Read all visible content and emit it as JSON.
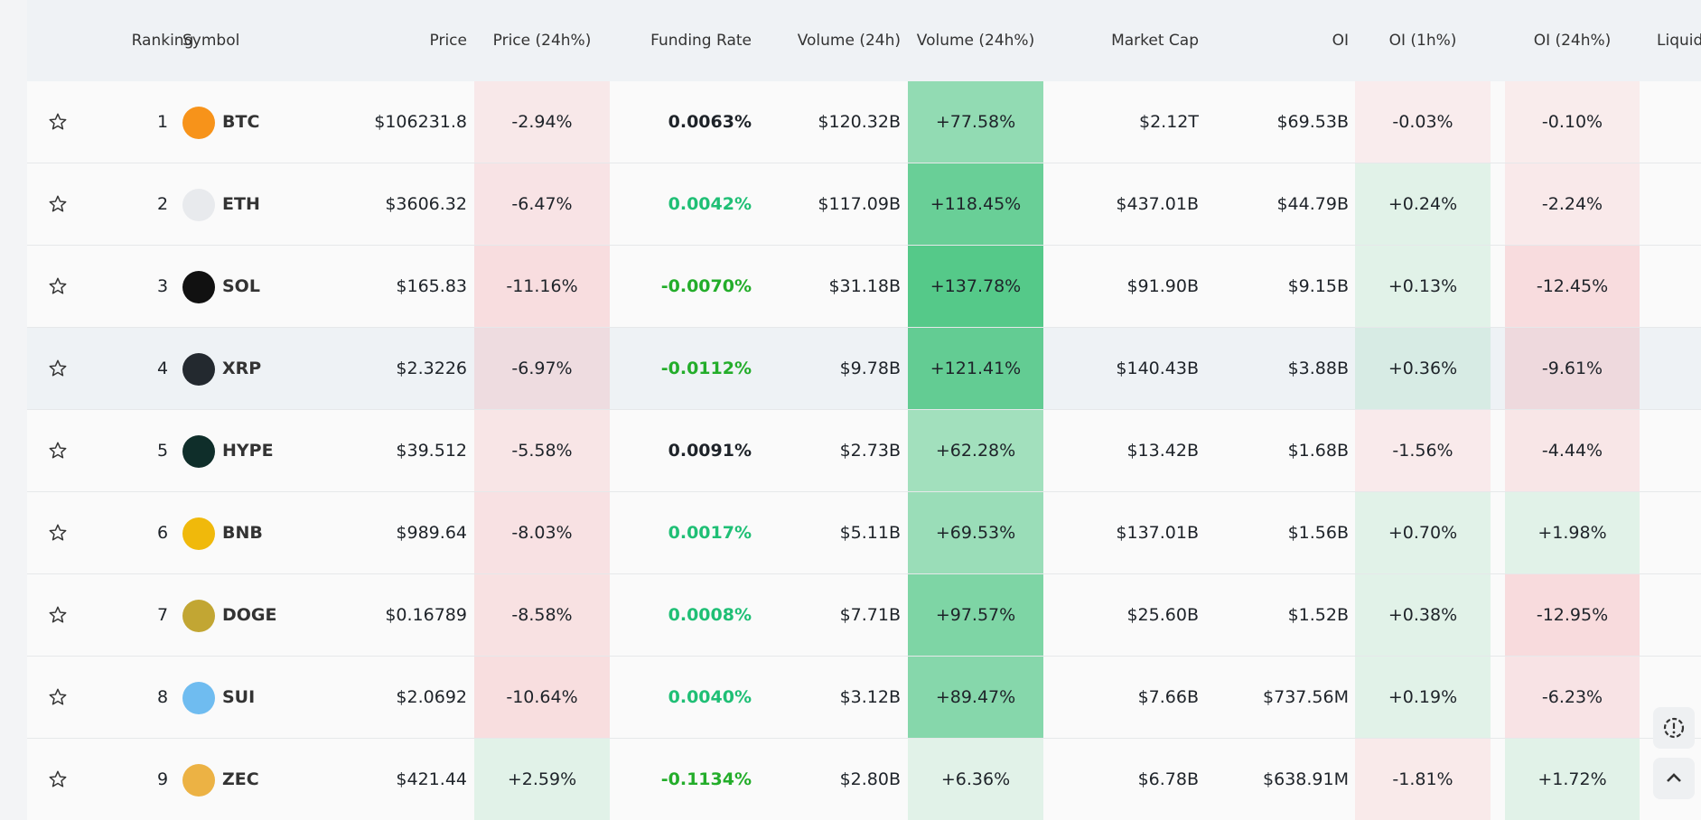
{
  "table": {
    "columns": [
      "Ranking",
      "Symbol",
      "Price",
      "Price (24h%)",
      "Funding Rate",
      "Volume (24h)",
      "Volume (24h%)",
      "Market Cap",
      "OI",
      "OI (1h%)",
      "OI (24h%)",
      "Liquid"
    ],
    "rows": [
      {
        "rank": "1",
        "symbol": "BTC",
        "icon_color": "#f7931a",
        "price": "$106231.8",
        "price_24h": "-2.94%",
        "funding": "0.0063%",
        "volume": "$120.32B",
        "volume_24h": "+77.58%",
        "market_cap": "$2.12T",
        "oi": "$69.53B",
        "oi_1h": "-0.03%",
        "oi_24h": "-0.10%"
      },
      {
        "rank": "2",
        "symbol": "ETH",
        "icon_color": "#e8eaed",
        "price": "$3606.32",
        "price_24h": "-6.47%",
        "funding": "0.0042%",
        "volume": "$117.09B",
        "volume_24h": "+118.45%",
        "market_cap": "$437.01B",
        "oi": "$44.79B",
        "oi_1h": "+0.24%",
        "oi_24h": "-2.24%"
      },
      {
        "rank": "3",
        "symbol": "SOL",
        "icon_color": "#111111",
        "price": "$165.83",
        "price_24h": "-11.16%",
        "funding": "-0.0070%",
        "volume": "$31.18B",
        "volume_24h": "+137.78%",
        "market_cap": "$91.90B",
        "oi": "$9.15B",
        "oi_1h": "+0.13%",
        "oi_24h": "-12.45%"
      },
      {
        "rank": "4",
        "symbol": "XRP",
        "icon_color": "#23292f",
        "price": "$2.3226",
        "price_24h": "-6.97%",
        "funding": "-0.0112%",
        "volume": "$9.78B",
        "volume_24h": "+121.41%",
        "market_cap": "$140.43B",
        "oi": "$3.88B",
        "oi_1h": "+0.36%",
        "oi_24h": "-9.61%"
      },
      {
        "rank": "5",
        "symbol": "HYPE",
        "icon_color": "#0f2e2a",
        "price": "$39.512",
        "price_24h": "-5.58%",
        "funding": "0.0091%",
        "volume": "$2.73B",
        "volume_24h": "+62.28%",
        "market_cap": "$13.42B",
        "oi": "$1.68B",
        "oi_1h": "-1.56%",
        "oi_24h": "-4.44%"
      },
      {
        "rank": "6",
        "symbol": "BNB",
        "icon_color": "#f0b90b",
        "price": "$989.64",
        "price_24h": "-8.03%",
        "funding": "0.0017%",
        "volume": "$5.11B",
        "volume_24h": "+69.53%",
        "market_cap": "$137.01B",
        "oi": "$1.56B",
        "oi_1h": "+0.70%",
        "oi_24h": "+1.98%"
      },
      {
        "rank": "7",
        "symbol": "DOGE",
        "icon_color": "#c2a633",
        "price": "$0.16789",
        "price_24h": "-8.58%",
        "funding": "0.0008%",
        "volume": "$7.71B",
        "volume_24h": "+97.57%",
        "market_cap": "$25.60B",
        "oi": "$1.52B",
        "oi_1h": "+0.38%",
        "oi_24h": "-12.95%"
      },
      {
        "rank": "8",
        "symbol": "SUI",
        "icon_color": "#6fbcf0",
        "price": "$2.0692",
        "price_24h": "-10.64%",
        "funding": "0.0040%",
        "volume": "$3.12B",
        "volume_24h": "+89.47%",
        "market_cap": "$7.66B",
        "oi": "$737.56M",
        "oi_1h": "+0.19%",
        "oi_24h": "-6.23%"
      },
      {
        "rank": "9",
        "symbol": "ZEC",
        "icon_color": "#ecb244",
        "price": "$421.44",
        "price_24h": "+2.59%",
        "funding": "-0.1134%",
        "volume": "$2.80B",
        "volume_24h": "+6.36%",
        "market_cap": "$6.78B",
        "oi": "$638.91M",
        "oi_1h": "-1.81%",
        "oi_24h": "+1.72%"
      }
    ]
  }
}
